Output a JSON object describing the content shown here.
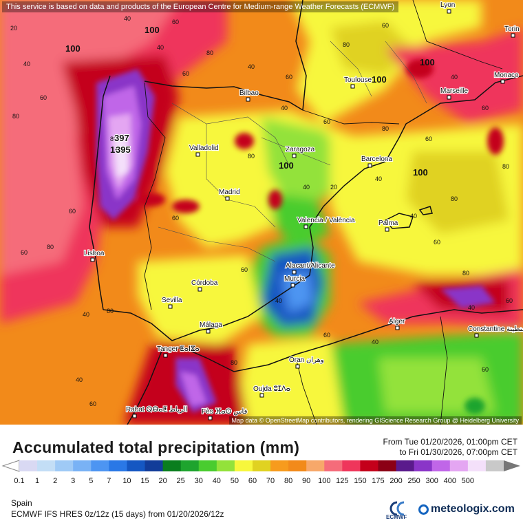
{
  "notice": "This service is based on data and products of the European Centre for Medium-range Weather Forecasts (ECMWF)",
  "attribution": "Map data © OpenStreetMap contributors, rendering GIScience Research Group @ Heidelberg University",
  "title": "Accumulated total precipitation (mm)",
  "period": {
    "from": "From Tue 01/20/2026, 01:00pm CET",
    "to": "to Fri 01/30/2026, 07:00pm CET"
  },
  "region": "Spain",
  "model": "ECMWF IFS HRES 0z/12z (15 days) from 01/20/2026/12z",
  "logos": {
    "ecmwf": "ECMWF",
    "meteologix": "meteologix.com"
  },
  "legend": {
    "labels": [
      "0.1",
      "1",
      "2",
      "3",
      "5",
      "7",
      "10",
      "15",
      "20",
      "25",
      "30",
      "40",
      "50",
      "60",
      "70",
      "80",
      "90",
      "100",
      "125",
      "150",
      "175",
      "200",
      "250",
      "300",
      "400",
      "500"
    ],
    "colors": [
      "#d9d9f3",
      "#c3def6",
      "#9fcaf6",
      "#79b2f5",
      "#4d95f2",
      "#2a78e6",
      "#1557c2",
      "#123c99",
      "#0a7e1e",
      "#1ea42e",
      "#49cc2f",
      "#93e23a",
      "#f7f73c",
      "#e0d221",
      "#f79b1d",
      "#f28a1a",
      "#f7a86a",
      "#f56c7a",
      "#ef365b",
      "#c4001a",
      "#8b0015",
      "#5a1a8c",
      "#8a35c8",
      "#c066e8",
      "#e4a6f2",
      "#f4e0fa",
      "#c9c9c9"
    ]
  },
  "places": [
    {
      "name": "Lyon"
    },
    {
      "name": "Torin"
    },
    {
      "name": "Monaco"
    },
    {
      "name": "Toulouse"
    },
    {
      "name": "Marseille"
    },
    {
      "name": "Bilbao"
    },
    {
      "name": "Zaragoza"
    },
    {
      "name": "Valladolid"
    },
    {
      "name": "Barcelona"
    },
    {
      "name": "Madrid"
    },
    {
      "name": "Valencia / València"
    },
    {
      "name": "Palma"
    },
    {
      "name": "Lisboa"
    },
    {
      "name": "Alacant/Alicante"
    },
    {
      "name": "Murcia"
    },
    {
      "name": "Córdoba"
    },
    {
      "name": "Sevilla"
    },
    {
      "name": "Málaga"
    },
    {
      "name": "Alger"
    },
    {
      "name": "Constantine قسنطينة"
    },
    {
      "name": "Tanger ⵟⴰⵏⴵⴰ"
    },
    {
      "name": "Oran وهران"
    },
    {
      "name": "Oujda ⵓⵊⴷⴰ"
    },
    {
      "name": "Rabat ⵕⴱⴰⵟ الرباط"
    },
    {
      "name": "Fès ⴼⴰⵙ فاس"
    }
  ],
  "map_values": [
    "20",
    "40",
    "60",
    "80",
    "100",
    "40",
    "60",
    "80",
    "100",
    "40",
    "60",
    "80",
    "100",
    "397",
    "395",
    "40",
    "60",
    "80",
    "100",
    "60",
    "40",
    "60",
    "80",
    "100",
    "40",
    "60",
    "20",
    "40",
    "60",
    "80",
    "40",
    "60",
    "80",
    "40",
    "60",
    "80",
    "100",
    "60",
    "80",
    "100",
    "40",
    "60",
    "80",
    "60",
    "40",
    "80",
    "40",
    "60",
    "80",
    "60",
    "40",
    "60",
    "40",
    "60"
  ],
  "colors": {
    "dry": "#f7f73c",
    "moderate": "#f79b1d",
    "wet": "#ef365b",
    "very_wet": "#c4001a",
    "extreme": "#c066e8",
    "low": "#1557c2"
  }
}
